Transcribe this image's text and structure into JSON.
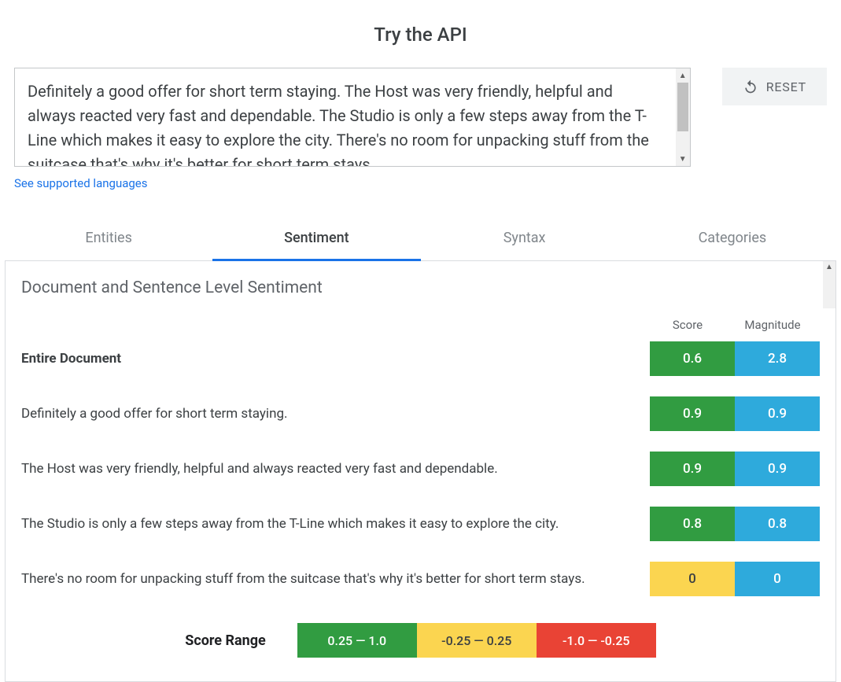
{
  "title": "Try the API",
  "input_text": "Definitely a good offer for short term staying. The Host was very friendly, helpful and always reacted very fast and dependable. The Studio is only a few steps away from the T-Line which makes it easy to explore the city. There's no room for unpacking stuff from the suitcase that's why it's better for short term stays.",
  "reset_label": "RESET",
  "languages_link": "See supported languages",
  "tabs": [
    {
      "label": "Entities",
      "active": false
    },
    {
      "label": "Sentiment",
      "active": true
    },
    {
      "label": "Syntax",
      "active": false
    },
    {
      "label": "Categories",
      "active": false
    }
  ],
  "panel_title": "Document and Sentence Level Sentiment",
  "headers": {
    "score": "Score",
    "magnitude": "Magnitude"
  },
  "colors": {
    "positive": "#319c41",
    "neutral": "#fbd550",
    "negative": "#e94335",
    "magnitude": "#2eaadc",
    "tab_active_border": "#1a73e8",
    "link": "#1a73e8"
  },
  "rows": [
    {
      "label": "Entire Document",
      "doc": true,
      "score": "0.6",
      "score_tone": "positive",
      "magnitude": "2.8"
    },
    {
      "label": "Definitely a good offer for short term staying.",
      "doc": false,
      "score": "0.9",
      "score_tone": "positive",
      "magnitude": "0.9"
    },
    {
      "label": "The Host was very friendly, helpful and always reacted very fast and dependable.",
      "doc": false,
      "score": "0.9",
      "score_tone": "positive",
      "magnitude": "0.9"
    },
    {
      "label": "The Studio is only a few steps away from the T-Line which makes it easy to explore the city.",
      "doc": false,
      "score": "0.8",
      "score_tone": "positive",
      "magnitude": "0.8"
    },
    {
      "label": "There's no room for unpacking stuff from the suitcase that's why it's better for short term stays.",
      "doc": false,
      "score": "0",
      "score_tone": "neutral",
      "magnitude": "0"
    }
  ],
  "score_range": {
    "label": "Score Range",
    "ranges": [
      {
        "text": "0.25 — 1.0",
        "tone": "positive"
      },
      {
        "text": "-0.25 — 0.25",
        "tone": "neutral"
      },
      {
        "text": "-1.0 — -0.25",
        "tone": "negative"
      }
    ]
  }
}
